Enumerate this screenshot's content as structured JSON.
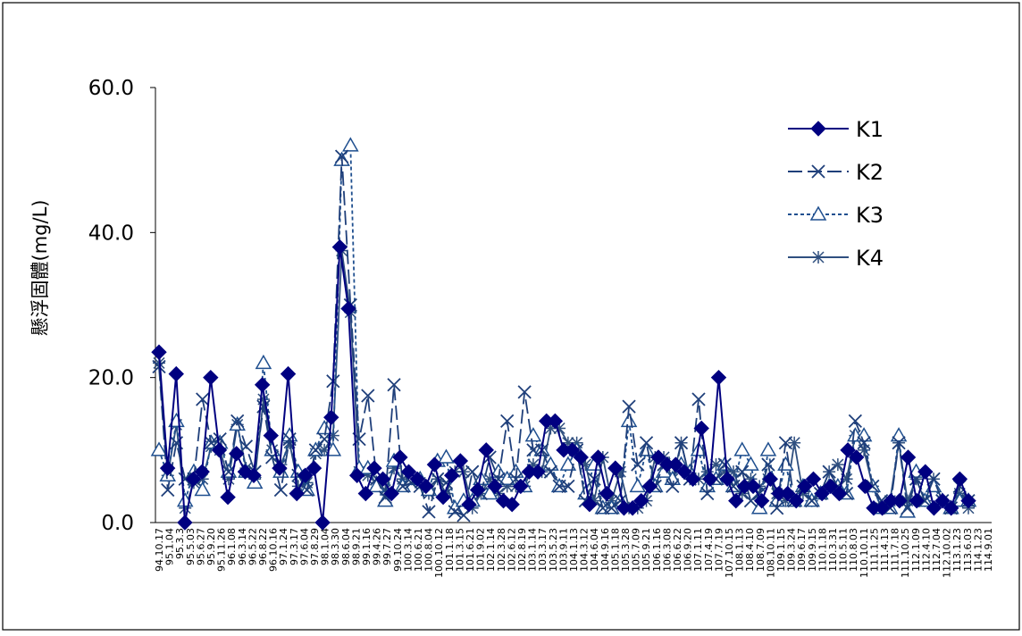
{
  "chart_data": {
    "type": "line",
    "title": "",
    "xlabel": "",
    "ylabel": "懸浮固體(mg/L)",
    "ylim": [
      0,
      60
    ],
    "y_ticks": [
      "0.0",
      "20.0",
      "40.0",
      "60.0"
    ],
    "grid": false,
    "legend_position": "top-right",
    "x_ticks": [
      "94.10.17",
      "95.1.04",
      "95.3.3",
      "95.5.03",
      "95.6.27",
      "95.9.20",
      "95.11.26",
      "96.1.08",
      "96.3.14",
      "96.5.22",
      "96.8.22",
      "96.10.16",
      "97.1.24",
      "97.3.17",
      "97.6.04",
      "97.8.29",
      "98.1.04",
      "98.3.30",
      "98.6.04",
      "98.9.21",
      "99.1.16",
      "99.4.26",
      "99.7.27",
      "99.10.24",
      "100.3.14",
      "100.6.21",
      "100.8.04",
      "100.10.12",
      "101.1.18",
      "101.3.15",
      "101.6.21",
      "101.9.02",
      "102.1.14",
      "102.3.28",
      "102.6.12",
      "102.8.19",
      "103.1.14",
      "103.3.17",
      "103.5.23",
      "103.9.11",
      "104.1.13",
      "104.3.12",
      "104.6.04",
      "104.9.16",
      "105.1.18",
      "105.3.28",
      "105.7.09",
      "105.9.21",
      "106.1.16",
      "106.3.08",
      "106.6.22",
      "106.9.20",
      "107.1.11",
      "107.4.19",
      "107.7.19",
      "107.10.15",
      "108.1.13",
      "108.4.10",
      "108.7.09",
      "108.10.11",
      "109.1.15",
      "109.3.24",
      "109.6.17",
      "109.9.15",
      "110.1.18",
      "110.3.31",
      "110.5.11",
      "110.8.03",
      "110.10.11",
      "111.1.25",
      "111.4.13",
      "111.7.18",
      "111.10.25",
      "112.1.09",
      "112.4.10",
      "112.7.04",
      "112.10.02",
      "113.1.23",
      "113.6.03",
      "114.1.23",
      "114.9.01"
    ],
    "series": [
      {
        "name": "K1",
        "color": "#000080",
        "marker": "diamond",
        "values": [
          23.5,
          7.5,
          20.5,
          0,
          6,
          7,
          20,
          10,
          3.5,
          9.5,
          7,
          6.5,
          19,
          12,
          7.5,
          20.5,
          4,
          6.5,
          7.5,
          0,
          14.5,
          38,
          29.5,
          6.5,
          4,
          7.5,
          6,
          4,
          9,
          7,
          6,
          5,
          8,
          3.5,
          6.5,
          8.5,
          2.5,
          4.5,
          10,
          5,
          3,
          2.5,
          5,
          7,
          7,
          14,
          14,
          10,
          10,
          9,
          2.5,
          9,
          4,
          7.5,
          2,
          2,
          3,
          5,
          9,
          8,
          8,
          7,
          6,
          13,
          6,
          20,
          6,
          3,
          5,
          5,
          3,
          6,
          4,
          4,
          3,
          5,
          6,
          4,
          5,
          4,
          10,
          9,
          5,
          2,
          2,
          3,
          3,
          9,
          3,
          7,
          2,
          3,
          2,
          6,
          3
        ]
      },
      {
        "name": "K2",
        "color": "#1f3f7a",
        "marker": "x",
        "values": [
          21.5,
          4.5,
          11,
          6,
          6,
          17,
          11,
          11.5,
          7,
          14,
          10.5,
          7,
          16,
          9,
          4.5,
          11.5,
          6.5,
          4.5,
          10,
          11.5,
          19.5,
          50.5,
          30,
          11.5,
          17.5,
          6,
          3.5,
          19,
          5,
          5.5,
          5,
          1.5,
          6,
          5.5,
          1.5,
          1,
          7,
          4,
          9,
          6,
          14,
          6,
          18,
          10,
          10,
          7,
          5,
          5,
          10,
          3,
          6,
          2,
          2,
          3,
          16,
          8,
          11,
          5,
          8,
          5,
          11,
          6,
          17,
          4,
          6,
          8,
          5,
          7,
          3,
          4,
          8,
          2,
          11,
          3,
          5,
          3,
          4,
          7,
          5,
          4,
          14,
          11,
          5,
          3,
          2,
          11,
          2,
          6,
          3,
          6,
          3,
          2,
          5,
          3
        ]
      },
      {
        "name": "K3",
        "color": "#1f4f8f",
        "marker": "triangle",
        "values": [
          10,
          6.5,
          14,
          3,
          7,
          4.5,
          11,
          11,
          7,
          13.5,
          7,
          5.5,
          22,
          10,
          7,
          12,
          7,
          4.5,
          10,
          13,
          10,
          50,
          52,
          7.5,
          7.5,
          5,
          3,
          8.5,
          5,
          6,
          6,
          4.5,
          8.5,
          9,
          2,
          3,
          3,
          6,
          4,
          7,
          6,
          7,
          5,
          12,
          10,
          8,
          5,
          8,
          10,
          4,
          8,
          2,
          2,
          3,
          14,
          5,
          10,
          5,
          7,
          6,
          8,
          7,
          10,
          5,
          6,
          8,
          5,
          10,
          8,
          2,
          10,
          3,
          8,
          3,
          5,
          3,
          4,
          5,
          5,
          4,
          12,
          12,
          5,
          2,
          2,
          12,
          1.5,
          7,
          3,
          5,
          3,
          2,
          3,
          3
        ]
      },
      {
        "name": "K4",
        "color": "#2f4f7f",
        "marker": "star",
        "values": [
          22,
          6.5,
          13.5,
          2,
          5.5,
          6,
          10.5,
          10,
          6,
          13.5,
          7.5,
          6,
          17,
          10,
          8,
          11,
          5,
          5.5,
          9.5,
          10,
          12,
          37.5,
          29,
          7,
          6.5,
          5.5,
          4.5,
          7.5,
          6,
          6,
          5.5,
          4,
          6,
          4,
          7,
          7,
          2,
          4,
          6,
          4,
          5,
          5,
          5,
          8,
          7,
          13,
          13,
          11,
          11,
          8,
          3,
          9,
          3,
          7,
          2,
          2,
          3,
          9,
          9,
          6,
          11,
          6,
          6,
          7,
          8,
          7,
          7,
          4,
          6,
          5,
          6,
          4,
          3,
          11,
          4,
          3,
          4,
          7,
          8,
          6,
          12,
          10,
          5,
          2,
          3,
          11,
          3,
          6,
          3,
          6,
          3,
          2,
          4,
          2
        ]
      }
    ]
  }
}
